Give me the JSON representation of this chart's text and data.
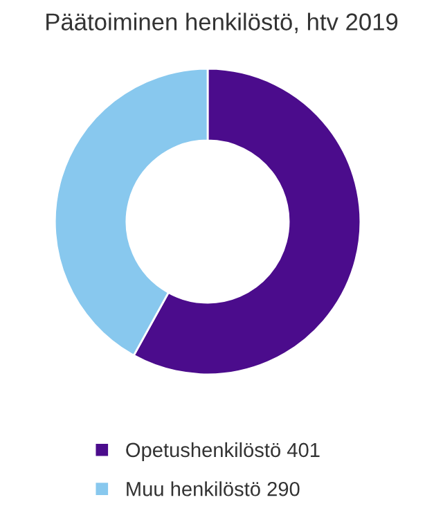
{
  "chart_data": {
    "type": "donut",
    "title": "Päätoiminen henkilöstö, htv 2019",
    "categories": [
      "Opetushenkilöstö 401",
      "Muu henkilöstö 290"
    ],
    "values": [
      401,
      290
    ],
    "colors": [
      "#4b0c8c",
      "#88c8ee"
    ],
    "legend": "bottom"
  }
}
